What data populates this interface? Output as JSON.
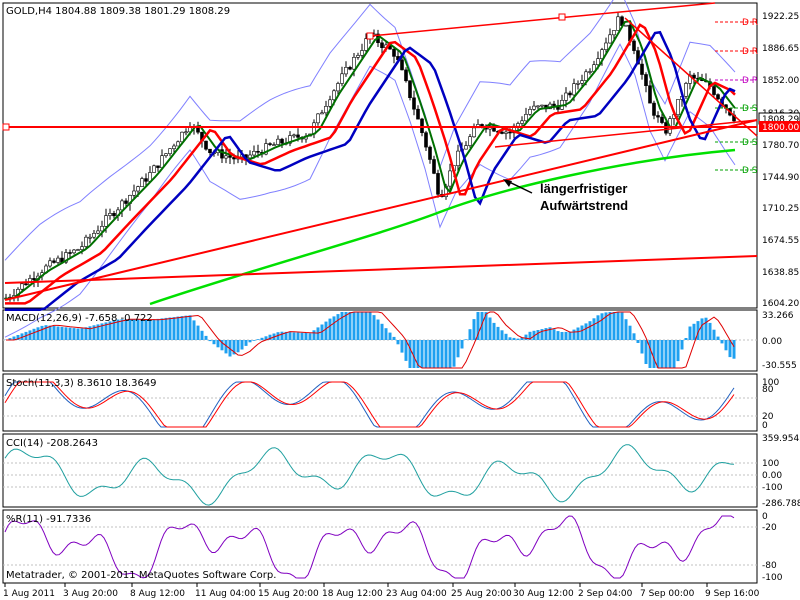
{
  "chart_data": [
    {
      "type": "candlestick",
      "panel": "price",
      "header": "GOLD,H4  1804.88 1809.38 1801.29 1808.29",
      "y_ticks": [
        "1922.25",
        "1886.65",
        "1852.00",
        "1816.30",
        "1780.70",
        "1744.90",
        "1710.25",
        "1674.55",
        "1638.85",
        "1604.20"
      ],
      "ylim": [
        1600,
        1930
      ],
      "current_price_label": "1808.29",
      "horizontal_line_label": "1800.00",
      "level_labels": [
        "D R",
        "D R",
        "D P",
        "D S",
        "D S",
        "D S"
      ],
      "annotation": [
        "längerfristiger",
        "Aufwärtstrend"
      ],
      "overlays": [
        "Bollinger Bands",
        "Moving Averages",
        "Trendlines"
      ]
    },
    {
      "type": "bar",
      "panel": "macd",
      "header": "MACD(12,26,9) -7.658 -0.722",
      "y_ticks": [
        "33.266",
        "0.00",
        "-30.555"
      ],
      "ylim": [
        -30.555,
        33.266
      ]
    },
    {
      "type": "line",
      "panel": "stochastic",
      "header": "Stoch(11,3,3) 8.3610 18.3649",
      "y_ticks": [
        "100",
        "80",
        "20",
        "0"
      ],
      "ylim": [
        0,
        100
      ]
    },
    {
      "type": "line",
      "panel": "cci",
      "header": "CCI(14) -208.2643",
      "y_ticks": [
        "359.9545",
        "100",
        "0.00",
        "-100",
        "-286.788"
      ],
      "ylim": [
        -286.788,
        359.9545
      ]
    },
    {
      "type": "line",
      "panel": "williams",
      "header": "%R(11) -91.7336",
      "y_ticks": [
        "0",
        "-20",
        "-80",
        "-100"
      ],
      "ylim": [
        -100,
        0
      ]
    }
  ],
  "x_ticks": [
    "1 Aug 2011",
    "3 Aug 20:00",
    "8 Aug 12:00",
    "11 Aug 04:00",
    "15 Aug 20:00",
    "18 Aug 12:00",
    "23 Aug 04:00",
    "25 Aug 20:00",
    "30 Aug 12:00",
    "2 Sep 04:00",
    "7 Sep 00:00",
    "9 Sep 16:00"
  ],
  "copyright": "Metatrader, © 2001-2011 MetaQuotes Software Corp.",
  "colors": {
    "bull": "#ffffff",
    "bear": "#000000",
    "red": "#ff0000",
    "blue": "#0000c0",
    "green": "#00c000",
    "macd": "#1ea0f0",
    "signal": "#e00000",
    "cci": "#20a0a0",
    "wr": "#8000c0",
    "band": "#8080ff"
  }
}
